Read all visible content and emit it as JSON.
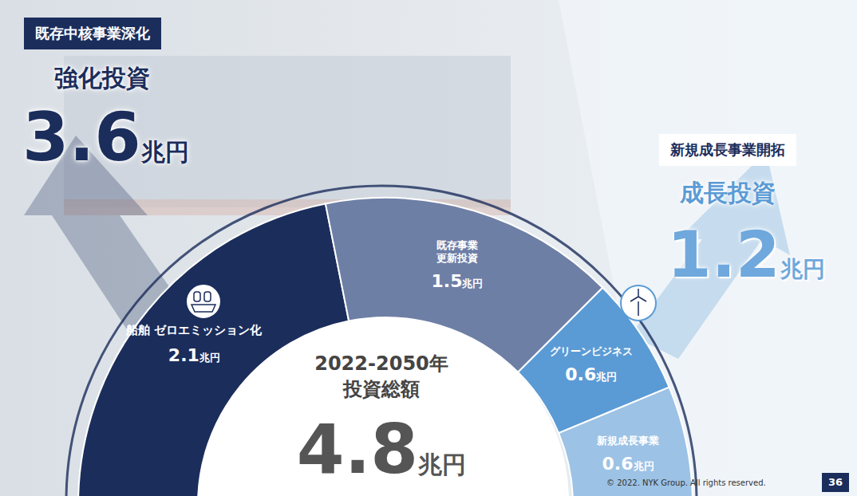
{
  "chart_data": {
    "type": "pie",
    "categories": [
      "船舶 ゼロエミッション化",
      "既存事業更新投資",
      "グリーンビジネス",
      "新規成長事業"
    ],
    "values": [
      2.1,
      1.5,
      0.6,
      0.6
    ],
    "value_labels": [
      "2.1兆円",
      "1.5兆円",
      "0.6兆円",
      "0.6兆円"
    ],
    "colors": [
      "#1b2d5b",
      "#6e7fa6",
      "#5b9bd5",
      "#9cc2e5"
    ],
    "data_labels": true,
    "center": {
      "lines": [
        "2022-2050年",
        "投資総額"
      ],
      "value": 4.8,
      "value_label": "4.8兆円"
    },
    "groups": [
      {
        "heading": "既存中核事業深化",
        "title": "強化投資",
        "value": 3.6,
        "value_label": "3.6兆円"
      },
      {
        "heading": "新規成長事業開拓",
        "title": "成長投資",
        "value": 1.2,
        "value_label": "1.2兆円"
      }
    ],
    "footer": "© 2022. NYK Group. All rights reserved.",
    "page": "36"
  }
}
